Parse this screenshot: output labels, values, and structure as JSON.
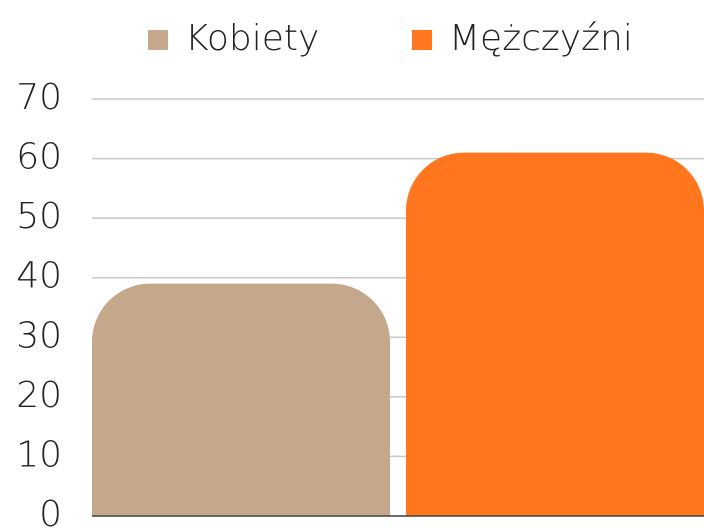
{
  "chart_data": {
    "type": "bar",
    "categories": [
      null
    ],
    "series": [
      {
        "name": "Kobiety",
        "color": "#c5a78b",
        "values": [
          39
        ]
      },
      {
        "name": "Mężczyźni",
        "color": "#ff761f",
        "values": [
          61
        ]
      }
    ],
    "ylim": [
      0,
      70
    ],
    "yticks": [
      0,
      10,
      20,
      30,
      40,
      50,
      60,
      70
    ],
    "grid": true,
    "legend": "top"
  }
}
